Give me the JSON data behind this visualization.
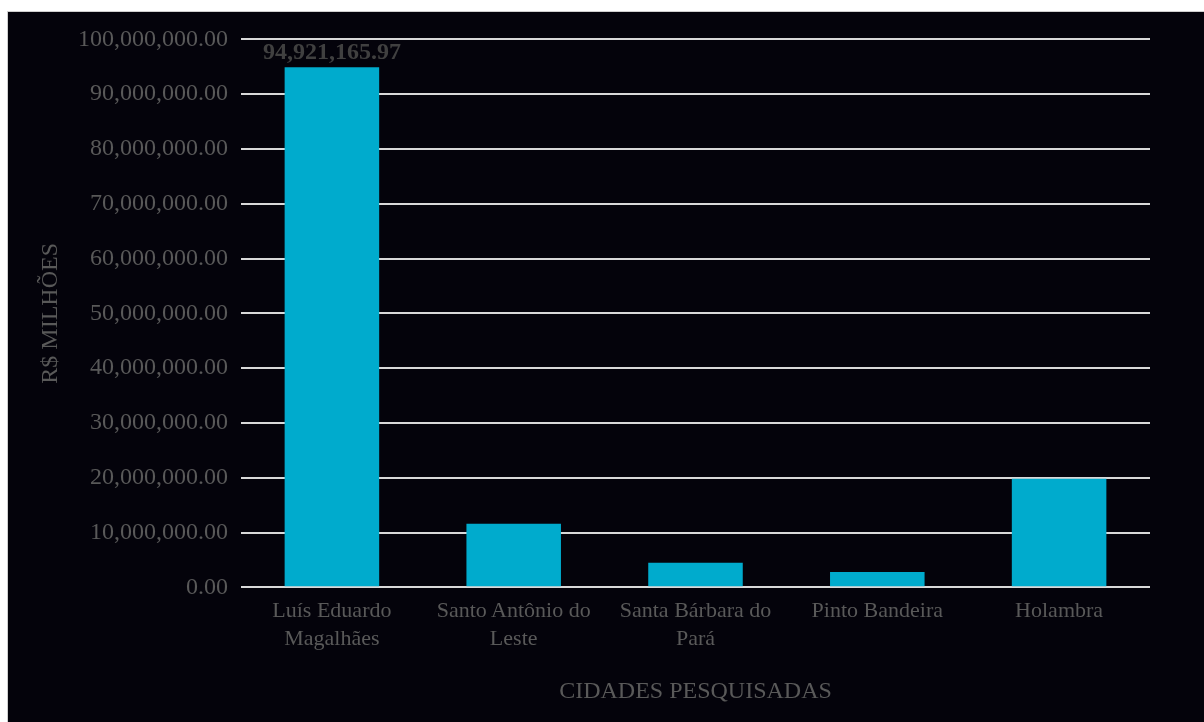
{
  "chart_data": {
    "type": "bar",
    "xlabel": "CIDADES PESQUISADAS",
    "ylabel": "R$ MILHÕES",
    "categories": [
      "Luís Eduardo Magalhães",
      "Santo Antônio do Leste",
      "Santa Bárbara do Pará",
      "Pinto Bandeira",
      "Holambra"
    ],
    "values": [
      94921165.97,
      11600000,
      4500000,
      2800000,
      19800000
    ],
    "color": "#00abcd",
    "value_labels": [
      "94,921,165.97",
      null,
      null,
      null,
      null
    ],
    "ylim": [
      0,
      100000000
    ],
    "yticks": [
      {
        "value": 0,
        "label": "0.00"
      },
      {
        "value": 10000000,
        "label": "10,000,000.00"
      },
      {
        "value": 20000000,
        "label": "20,000,000.00"
      },
      {
        "value": 30000000,
        "label": "30,000,000.00"
      },
      {
        "value": 40000000,
        "label": "40,000,000.00"
      },
      {
        "value": 50000000,
        "label": "50,000,000.00"
      },
      {
        "value": 60000000,
        "label": "60,000,000.00"
      },
      {
        "value": 70000000,
        "label": "70,000,000.00"
      },
      {
        "value": 80000000,
        "label": "80,000,000.00"
      },
      {
        "value": 90000000,
        "label": "90,000,000.00"
      },
      {
        "value": 100000000,
        "label": "100,000,000.00"
      }
    ],
    "grid": "y"
  }
}
